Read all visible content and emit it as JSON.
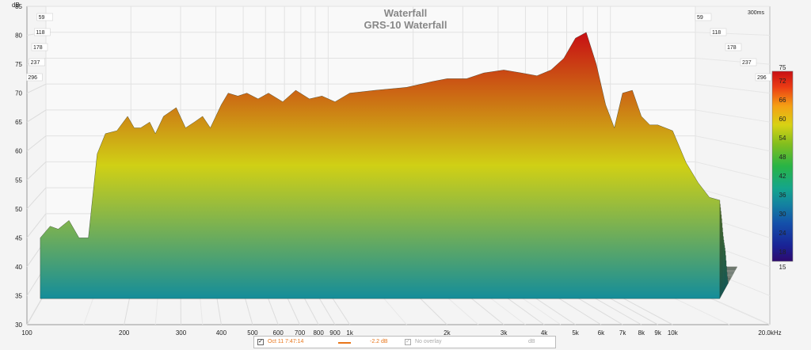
{
  "chart_data": {
    "type": "area",
    "title": "Waterfall",
    "subtitle": "GRS-10 Waterfall",
    "ylabel": "dB",
    "xlabel_unit": "kHz",
    "x_scale": "log",
    "xlim": [
      100,
      20000
    ],
    "ylim": [
      30,
      85
    ],
    "x_ticks": [
      "100",
      "200",
      "300",
      "400",
      "500",
      "600",
      "700",
      "800",
      "900",
      "1k",
      "2k",
      "3k",
      "4k",
      "5k",
      "6k",
      "7k",
      "8k",
      "9k",
      "10k",
      "20.0kHz"
    ],
    "x_tick_values": [
      100,
      200,
      300,
      400,
      500,
      600,
      700,
      800,
      900,
      1000,
      2000,
      3000,
      4000,
      5000,
      6000,
      7000,
      8000,
      9000,
      10000,
      20000
    ],
    "y_ticks": [
      "30",
      "35",
      "40",
      "45",
      "50",
      "55",
      "60",
      "65",
      "70",
      "75",
      "80",
      "85"
    ],
    "y_tick_values": [
      30,
      35,
      40,
      45,
      50,
      55,
      60,
      65,
      70,
      75,
      80,
      85
    ],
    "time_ticks_left": [
      "59",
      "118",
      "178",
      "237",
      "296"
    ],
    "time_ticks_right": [
      "59",
      "118",
      "178",
      "237",
      "296"
    ],
    "time_max_label": "300ms",
    "colorbar": {
      "ticks": [
        "15",
        "18",
        "24",
        "30",
        "36",
        "42",
        "48",
        "54",
        "60",
        "66",
        "72",
        "75"
      ],
      "values": [
        15,
        18,
        24,
        30,
        36,
        42,
        48,
        54,
        60,
        66,
        72,
        75
      ],
      "range": [
        15,
        75
      ]
    },
    "series": [
      {
        "name": "Oct 11 7:47:14",
        "x": [
          110,
          118,
          125,
          135,
          145,
          155,
          165,
          175,
          190,
          205,
          215,
          225,
          240,
          250,
          265,
          290,
          310,
          330,
          350,
          370,
          400,
          420,
          450,
          480,
          520,
          560,
          620,
          680,
          750,
          820,
          900,
          1000,
          1200,
          1500,
          1800,
          2000,
          2300,
          2600,
          3000,
          3400,
          3800,
          4200,
          4600,
          5000,
          5400,
          5800,
          6200,
          6600,
          7000,
          7500,
          8000,
          8500,
          9000,
          10000,
          11000,
          12000,
          13000,
          14000
        ],
        "values": [
          45,
          47,
          46.5,
          48,
          45,
          45,
          59.5,
          63,
          63.5,
          66,
          64,
          64,
          65,
          63,
          66,
          67.5,
          64,
          65,
          66,
          64,
          68,
          70,
          69.5,
          70,
          69,
          70,
          68.5,
          70.5,
          69,
          69.5,
          68.5,
          70,
          70.5,
          71,
          72,
          72.5,
          72.5,
          73.5,
          74,
          73.5,
          73,
          74,
          76,
          79.5,
          80.5,
          75,
          68,
          64,
          70,
          70.5,
          66,
          64.5,
          64.5,
          63.5,
          58,
          54.5,
          52,
          51.5
        ]
      }
    ],
    "legend": {
      "series_label": "Oct 11 7:47:14",
      "offset": "-2.2 dB",
      "overlay_label": "No overlay",
      "overlay_unit": "dB"
    },
    "colors": {
      "series": "#e8751a",
      "background": "#f4f4f4",
      "grid": "#d8d8d8"
    }
  }
}
